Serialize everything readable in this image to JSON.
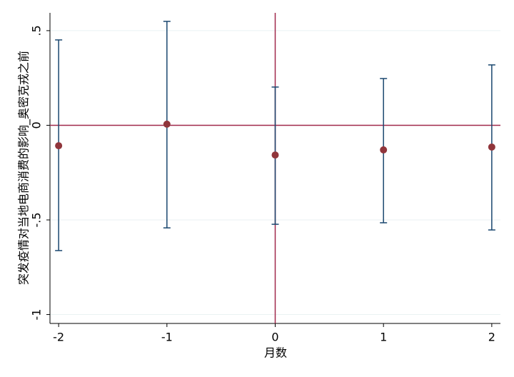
{
  "chart_data": {
    "type": "errorbar",
    "x_label": "月数",
    "y_label": "突发疫情对当地电商消费的影响_奥密克戎之前",
    "x": [
      -2,
      -1,
      0,
      1,
      2
    ],
    "values": [
      -0.108,
      0.006,
      -0.157,
      -0.13,
      -0.115
    ],
    "ci_low": [
      -0.662,
      -0.542,
      -0.523,
      -0.515,
      -0.553
    ],
    "ci_high": [
      0.451,
      0.549,
      0.202,
      0.247,
      0.319
    ],
    "color": "#90353b",
    "bar_color": "#1a476f",
    "xlim": [
      -2.08,
      2.08
    ],
    "xticks": [
      -2,
      -1,
      0,
      1,
      2
    ],
    "ylim": [
      -1.047,
      0.594
    ],
    "yticks": [
      {
        "value": -1,
        "label": "-1"
      },
      {
        "value": -0.5,
        "label": "-.5"
      },
      0,
      {
        "value": 0.5,
        "label": ".5"
      }
    ],
    "ref_y": 0,
    "ref_x": 0,
    "ref_color": "#a0284a",
    "grid": true
  }
}
